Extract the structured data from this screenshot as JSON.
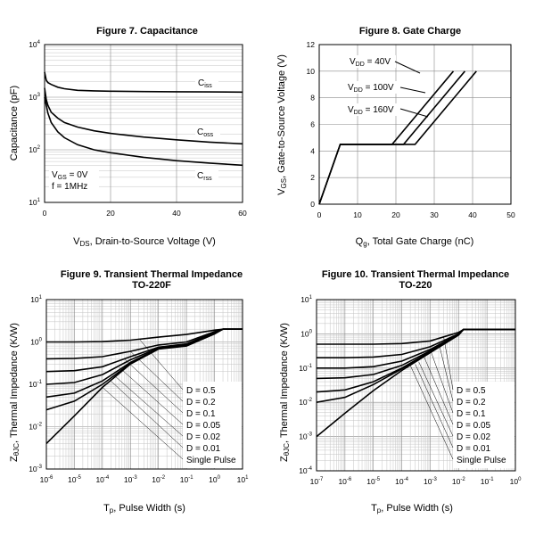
{
  "chart_data": [
    {
      "type": "line",
      "title": "Figure 7. Capacitance",
      "xlabel": "V_DS, Drain-to-Source Voltage (V)",
      "ylabel": "Capacitance (pF)",
      "xlim": [
        0,
        60
      ],
      "ylim": [
        10,
        10000
      ],
      "yscale": "log",
      "grid": true,
      "xticks": [
        "0",
        "20",
        "40",
        "60"
      ],
      "yticks": [
        "10^1",
        "10^2",
        "10^3",
        "10^4"
      ],
      "annotation": [
        "V_GS = 0V",
        "f = 1MHz"
      ],
      "series": [
        {
          "name": "C_iss",
          "x": [
            0,
            0.5,
            1,
            2,
            4,
            6,
            10,
            15,
            20,
            30,
            40,
            50,
            60
          ],
          "y": [
            3000,
            2100,
            1900,
            1750,
            1550,
            1450,
            1350,
            1320,
            1300,
            1280,
            1270,
            1260,
            1250
          ]
        },
        {
          "name": "C_oss",
          "x": [
            0,
            0.5,
            1,
            2,
            4,
            6,
            10,
            15,
            20,
            30,
            40,
            50,
            60
          ],
          "y": [
            1500,
            900,
            700,
            520,
            400,
            330,
            270,
            230,
            205,
            175,
            155,
            140,
            130
          ]
        },
        {
          "name": "C_rss",
          "x": [
            0,
            0.5,
            1,
            2,
            4,
            6,
            10,
            15,
            20,
            30,
            40,
            50,
            60
          ],
          "y": [
            1000,
            700,
            500,
            330,
            220,
            170,
            125,
            100,
            88,
            72,
            62,
            56,
            51
          ]
        }
      ]
    },
    {
      "type": "line",
      "title": "Figure 8. Gate Charge",
      "xlabel": "Q_g, Total Gate Charge (nC)",
      "ylabel": "V_GS, Gate-to-Source Voltage (V)",
      "xlim": [
        0,
        50
      ],
      "ylim": [
        0,
        12
      ],
      "grid": true,
      "xticks": [
        "0",
        "10",
        "20",
        "30",
        "40",
        "50"
      ],
      "yticks": [
        "0",
        "2",
        "4",
        "6",
        "8",
        "10",
        "12"
      ],
      "series": [
        {
          "name": "V_DD = 40V",
          "x": [
            0,
            5.5,
            19,
            35
          ],
          "y": [
            0,
            4.5,
            4.5,
            10
          ]
        },
        {
          "name": "V_DD = 100V",
          "x": [
            0,
            5.5,
            22,
            38
          ],
          "y": [
            0,
            4.5,
            4.5,
            10
          ]
        },
        {
          "name": "V_DD = 160V",
          "x": [
            0,
            5.5,
            25,
            41
          ],
          "y": [
            0,
            4.5,
            4.5,
            10
          ]
        }
      ]
    },
    {
      "type": "line",
      "title": "Figure 9. Transient Thermal Impedance",
      "subtitle": "TO-220F",
      "xlabel": "T_p, Pulse Width (s)",
      "ylabel": "Z_θJC, Thermal Impedance (K/W)",
      "xscale": "log",
      "yscale": "log",
      "xlim": [
        1e-06,
        10
      ],
      "ylim": [
        0.001,
        10
      ],
      "grid": true,
      "xticks": [
        "10^-6",
        "10^-5",
        "10^-4",
        "10^-3",
        "10^-2",
        "10^-1",
        "10^0",
        "10^1"
      ],
      "yticks": [
        "10^-3",
        "10^-2",
        "10^-1",
        "10^0",
        "10^1"
      ],
      "legend": [
        "D = 0.5",
        "D = 0.2",
        "D = 0.1",
        "D = 0.05",
        "D = 0.02",
        "D = 0.01",
        "Single Pulse"
      ],
      "legend_position": "bottom-right",
      "series": [
        {
          "name": "D = 0.5",
          "x": [
            1e-06,
            1e-05,
            0.0001,
            0.001,
            0.01,
            0.1,
            1,
            2,
            10
          ],
          "y": [
            1.0,
            1.0,
            1.02,
            1.1,
            1.3,
            1.5,
            1.9,
            2.0,
            2.0
          ]
        },
        {
          "name": "D = 0.2",
          "x": [
            1e-06,
            1e-05,
            0.0001,
            0.001,
            0.01,
            0.1,
            1,
            2,
            10
          ],
          "y": [
            0.4,
            0.41,
            0.45,
            0.6,
            0.85,
            1.0,
            1.75,
            2.0,
            2.0
          ]
        },
        {
          "name": "D = 0.1",
          "x": [
            1e-06,
            1e-05,
            0.0001,
            0.001,
            0.01,
            0.1,
            1,
            2,
            10
          ],
          "y": [
            0.2,
            0.21,
            0.26,
            0.45,
            0.75,
            0.9,
            1.7,
            2.0,
            2.0
          ]
        },
        {
          "name": "D = 0.05",
          "x": [
            1e-06,
            1e-05,
            0.0001,
            0.001,
            0.01,
            0.1,
            1,
            2,
            10
          ],
          "y": [
            0.1,
            0.11,
            0.17,
            0.38,
            0.72,
            0.85,
            1.65,
            2.0,
            2.0
          ]
        },
        {
          "name": "D = 0.02",
          "x": [
            1e-06,
            1e-05,
            0.0001,
            0.001,
            0.01,
            0.1,
            1,
            2,
            10
          ],
          "y": [
            0.05,
            0.062,
            0.12,
            0.33,
            0.7,
            0.83,
            1.6,
            2.0,
            2.0
          ]
        },
        {
          "name": "D = 0.01",
          "x": [
            1e-06,
            1e-05,
            0.0001,
            0.001,
            0.01,
            0.1,
            1,
            2,
            10
          ],
          "y": [
            0.025,
            0.04,
            0.1,
            0.31,
            0.69,
            0.82,
            1.6,
            2.0,
            2.0
          ]
        },
        {
          "name": "Single Pulse",
          "x": [
            1e-06,
            1e-05,
            0.0001,
            0.001,
            0.01,
            0.1,
            1,
            2,
            10
          ],
          "y": [
            0.004,
            0.018,
            0.085,
            0.3,
            0.68,
            0.8,
            1.55,
            2.0,
            2.0
          ]
        }
      ]
    },
    {
      "type": "line",
      "title": "Figure 10. Transient Thermal Impedance",
      "subtitle": "TO-220",
      "xlabel": "T_p, Pulse Width (s)",
      "ylabel": "Z_θJC, Thermal Impedance (K/W)",
      "xscale": "log",
      "yscale": "log",
      "xlim": [
        1e-07,
        1
      ],
      "ylim": [
        0.0001,
        10
      ],
      "grid": true,
      "xticks": [
        "10^-7",
        "10^-6",
        "10^-5",
        "10^-4",
        "10^-3",
        "10^-2",
        "10^-1",
        "10^0"
      ],
      "yticks": [
        "10^-4",
        "10^-3",
        "10^-2",
        "10^-1",
        "10^0",
        "10^1"
      ],
      "legend": [
        "D = 0.5",
        "D = 0.2",
        "D = 0.1",
        "D = 0.05",
        "D = 0.02",
        "D = 0.01",
        "Single Pulse"
      ],
      "legend_position": "bottom-right",
      "series": [
        {
          "name": "D = 0.5",
          "x": [
            1e-07,
            1e-06,
            1e-05,
            0.0001,
            0.001,
            0.01,
            0.015,
            1
          ],
          "y": [
            0.5,
            0.5,
            0.5,
            0.52,
            0.62,
            1.1,
            1.35,
            1.35
          ]
        },
        {
          "name": "D = 0.2",
          "x": [
            1e-07,
            1e-06,
            1e-05,
            0.0001,
            0.001,
            0.01,
            0.015,
            1
          ],
          "y": [
            0.2,
            0.2,
            0.21,
            0.25,
            0.42,
            1.0,
            1.35,
            1.35
          ]
        },
        {
          "name": "D = 0.1",
          "x": [
            1e-07,
            1e-06,
            1e-05,
            0.0001,
            0.001,
            0.01,
            0.015,
            1
          ],
          "y": [
            0.1,
            0.1,
            0.11,
            0.16,
            0.35,
            0.97,
            1.35,
            1.35
          ]
        },
        {
          "name": "D = 0.05",
          "x": [
            1e-07,
            1e-06,
            1e-05,
            0.0001,
            0.001,
            0.01,
            0.015,
            1
          ],
          "y": [
            0.05,
            0.052,
            0.065,
            0.12,
            0.32,
            0.95,
            1.35,
            1.35
          ]
        },
        {
          "name": "D = 0.02",
          "x": [
            1e-07,
            1e-06,
            1e-05,
            0.0001,
            0.001,
            0.01,
            0.015,
            1
          ],
          "y": [
            0.02,
            0.023,
            0.04,
            0.1,
            0.3,
            0.94,
            1.35,
            1.35
          ]
        },
        {
          "name": "D = 0.01",
          "x": [
            1e-07,
            1e-06,
            1e-05,
            0.0001,
            0.001,
            0.01,
            0.015,
            1
          ],
          "y": [
            0.01,
            0.014,
            0.033,
            0.095,
            0.29,
            0.93,
            1.35,
            1.35
          ]
        },
        {
          "name": "Single Pulse",
          "x": [
            1e-07,
            1e-06,
            1e-05,
            0.0001,
            0.001,
            0.01,
            0.015,
            1
          ],
          "y": [
            0.001,
            0.0048,
            0.022,
            0.085,
            0.28,
            0.92,
            1.35,
            1.35
          ]
        }
      ]
    }
  ]
}
